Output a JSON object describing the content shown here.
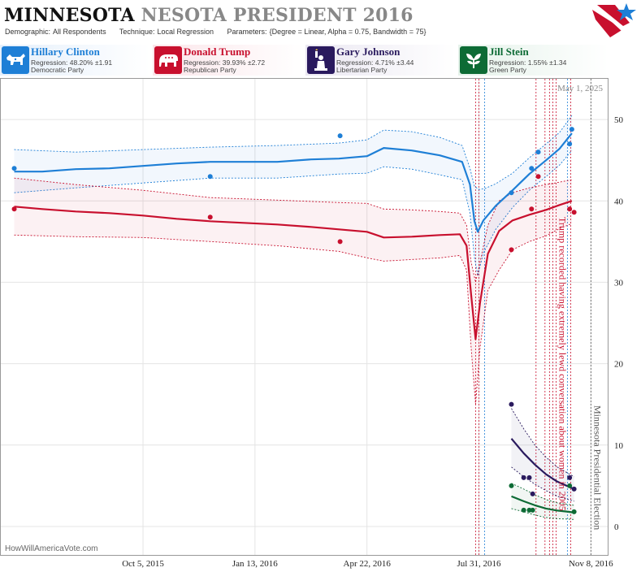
{
  "header": {
    "title_main": "MINNESOTA",
    "title_sub": "NESOTA PRESIDENT 2016",
    "demographic_key": "Demographic:",
    "demographic_val": "All Respondents",
    "technique_key": "Technique:",
    "technique_val": "Local Regression",
    "parameters_key": "Parameters:",
    "parameters_val": "{Degree = Linear, Alpha = 0.75, Bandwidth = 75}"
  },
  "candidates": [
    {
      "name": "Hillary Clinton",
      "regression": "Regression: 48.20% ±1.91",
      "party": "Democratic Party",
      "color": "#1e7fd6",
      "icon": "donkey-icon"
    },
    {
      "name": "Donald Trump",
      "regression": "Regression: 39.93% ±2.72",
      "party": "Republican Party",
      "color": "#c8102e",
      "icon": "elephant-icon"
    },
    {
      "name": "Gary Johnson",
      "regression": "Regression: 4.71% ±3.44",
      "party": "Libertarian Party",
      "color": "#2a1a5e",
      "icon": "statue-of-liberty-icon"
    },
    {
      "name": "Jill Stein",
      "regression": "Regression: 1.55% ±1.34",
      "party": "Green Party",
      "color": "#0d6b35",
      "icon": "leaf-icon"
    }
  ],
  "credit": "HowWillAmericaVote.com",
  "current_date": "May 1, 2025",
  "chart_data": {
    "type": "line",
    "x_ticks": [
      "Oct 5, 2015",
      "Jan 13, 2016",
      "Apr 22, 2016",
      "Jul 31, 2016",
      "Nov 8, 2016"
    ],
    "y_ticks": [
      0,
      10,
      20,
      30,
      40,
      50
    ],
    "ylim": [
      -3.5,
      55
    ],
    "xlim_days": [
      -127,
      415
    ],
    "annotations": [
      {
        "text": "Trump recorded having extremely lewd conversation about women in 2005",
        "day": 369,
        "color": "#c8102e"
      },
      {
        "text": "Minnesota Presidential Election",
        "day": 400,
        "color": "#555555"
      }
    ],
    "event_lines": [
      {
        "day": 297,
        "color": "#c8102e"
      },
      {
        "day": 300,
        "color": "#c8102e"
      },
      {
        "day": 305,
        "color": "#1e7fd6"
      },
      {
        "day": 351,
        "color": "#c8102e"
      },
      {
        "day": 359,
        "color": "#c8102e"
      },
      {
        "day": 363,
        "color": "#c8102e"
      },
      {
        "day": 366,
        "color": "#c8102e"
      },
      {
        "day": 369,
        "color": "#c8102e"
      },
      {
        "day": 379,
        "color": "#1e7fd6"
      },
      {
        "day": 382,
        "color": "#c8102e"
      },
      {
        "day": 400,
        "color": "#555555"
      }
    ],
    "series": [
      {
        "name": "Hillary Clinton",
        "color": "#1e7fd6",
        "points": [
          [
            -115,
            44
          ],
          [
            60,
            43
          ],
          [
            176,
            48
          ],
          [
            329,
            41
          ],
          [
            347,
            44
          ],
          [
            353,
            46
          ],
          [
            381,
            47
          ],
          [
            383,
            48.8
          ]
        ],
        "trend": [
          [
            -115,
            43.6
          ],
          [
            -90,
            43.6
          ],
          [
            -60,
            43.9
          ],
          [
            -30,
            44.0
          ],
          [
            0,
            44.3
          ],
          [
            30,
            44.6
          ],
          [
            60,
            44.8
          ],
          [
            90,
            44.8
          ],
          [
            120,
            44.8
          ],
          [
            150,
            45.1
          ],
          [
            175,
            45.2
          ],
          [
            200,
            45.5
          ],
          [
            215,
            46.5
          ],
          [
            240,
            46.2
          ],
          [
            265,
            45.6
          ],
          [
            285,
            44.8
          ],
          [
            292,
            42.0
          ],
          [
            296,
            37.5
          ],
          [
            299,
            36.2
          ],
          [
            304,
            37.6
          ],
          [
            315,
            39.4
          ],
          [
            330,
            41.3
          ],
          [
            345,
            43.3
          ],
          [
            360,
            45.0
          ],
          [
            372,
            46.4
          ],
          [
            383,
            48.3
          ]
        ],
        "upper": [
          [
            -115,
            46.3
          ],
          [
            -60,
            46.0
          ],
          [
            0,
            46.3
          ],
          [
            60,
            46.6
          ],
          [
            120,
            46.8
          ],
          [
            175,
            47.1
          ],
          [
            200,
            47.5
          ],
          [
            215,
            48.7
          ],
          [
            240,
            48.5
          ],
          [
            265,
            47.8
          ],
          [
            285,
            46.8
          ],
          [
            292,
            44.0
          ],
          [
            296,
            41.8
          ],
          [
            300,
            41.4
          ],
          [
            305,
            41.5
          ],
          [
            315,
            42.1
          ],
          [
            330,
            43.4
          ],
          [
            345,
            45.3
          ],
          [
            360,
            47.0
          ],
          [
            372,
            48.4
          ],
          [
            383,
            50.5
          ]
        ],
        "lower": [
          [
            -115,
            41.0
          ],
          [
            -60,
            41.6
          ],
          [
            0,
            42.2
          ],
          [
            60,
            42.8
          ],
          [
            120,
            42.8
          ],
          [
            175,
            43.3
          ],
          [
            200,
            43.4
          ],
          [
            215,
            44.2
          ],
          [
            240,
            43.9
          ],
          [
            265,
            43.2
          ],
          [
            285,
            42.6
          ],
          [
            292,
            38.5
          ],
          [
            296,
            33.0
          ],
          [
            299,
            30.8
          ],
          [
            304,
            33.6
          ],
          [
            315,
            36.5
          ],
          [
            330,
            39.2
          ],
          [
            345,
            41.3
          ],
          [
            360,
            43.0
          ],
          [
            372,
            44.4
          ],
          [
            383,
            46.2
          ]
        ]
      },
      {
        "name": "Donald Trump",
        "color": "#c8102e",
        "points": [
          [
            -115,
            39
          ],
          [
            60,
            38
          ],
          [
            176,
            35
          ],
          [
            329,
            34
          ],
          [
            347,
            39
          ],
          [
            353,
            43
          ],
          [
            381,
            39
          ],
          [
            385,
            38.6
          ]
        ],
        "trend": [
          [
            -115,
            39.3
          ],
          [
            -90,
            39.0
          ],
          [
            -60,
            38.7
          ],
          [
            -30,
            38.5
          ],
          [
            0,
            38.2
          ],
          [
            30,
            37.8
          ],
          [
            60,
            37.5
          ],
          [
            90,
            37.3
          ],
          [
            120,
            37.1
          ],
          [
            150,
            36.8
          ],
          [
            175,
            36.5
          ],
          [
            200,
            36.2
          ],
          [
            215,
            35.5
          ],
          [
            240,
            35.6
          ],
          [
            265,
            35.8
          ],
          [
            283,
            35.9
          ],
          [
            289,
            34.5
          ],
          [
            293,
            28.5
          ],
          [
            297,
            23.0
          ],
          [
            301,
            27.5
          ],
          [
            308,
            33.5
          ],
          [
            318,
            36.3
          ],
          [
            330,
            37.6
          ],
          [
            345,
            38.3
          ],
          [
            360,
            38.9
          ],
          [
            372,
            39.5
          ],
          [
            383,
            40.0
          ]
        ],
        "upper": [
          [
            -115,
            42.8
          ],
          [
            -60,
            42.0
          ],
          [
            0,
            41.3
          ],
          [
            60,
            40.4
          ],
          [
            120,
            40.1
          ],
          [
            175,
            39.8
          ],
          [
            200,
            39.7
          ],
          [
            215,
            39.0
          ],
          [
            240,
            38.9
          ],
          [
            265,
            38.7
          ],
          [
            283,
            38.5
          ],
          [
            289,
            37.0
          ],
          [
            293,
            32.5
          ],
          [
            297,
            30.0
          ],
          [
            301,
            32.5
          ],
          [
            308,
            37.0
          ],
          [
            318,
            40.0
          ],
          [
            330,
            41.0
          ],
          [
            345,
            41.6
          ],
          [
            360,
            42.0
          ],
          [
            372,
            42.3
          ],
          [
            383,
            42.6
          ]
        ],
        "lower": [
          [
            -115,
            35.8
          ],
          [
            -60,
            35.6
          ],
          [
            0,
            35.5
          ],
          [
            60,
            35.0
          ],
          [
            120,
            34.5
          ],
          [
            175,
            33.8
          ],
          [
            200,
            33.0
          ],
          [
            215,
            32.6
          ],
          [
            240,
            32.8
          ],
          [
            265,
            33.0
          ],
          [
            283,
            33.3
          ],
          [
            289,
            31.5
          ],
          [
            293,
            22.0
          ],
          [
            297,
            15.0
          ],
          [
            301,
            22.0
          ],
          [
            308,
            29.0
          ],
          [
            318,
            31.5
          ],
          [
            330,
            34.0
          ],
          [
            345,
            35.0
          ],
          [
            360,
            35.7
          ],
          [
            372,
            36.6
          ],
          [
            383,
            37.2
          ]
        ]
      },
      {
        "name": "Gary Johnson",
        "color": "#2a1a5e",
        "points": [
          [
            329,
            15
          ],
          [
            340,
            6
          ],
          [
            345,
            6
          ],
          [
            348,
            4
          ],
          [
            381,
            6
          ],
          [
            385,
            4.6
          ]
        ],
        "trend": [
          [
            329,
            10.8
          ],
          [
            340,
            9.0
          ],
          [
            350,
            7.6
          ],
          [
            360,
            6.4
          ],
          [
            370,
            5.5
          ],
          [
            380,
            4.9
          ],
          [
            385,
            4.6
          ]
        ],
        "upper": [
          [
            329,
            14.5
          ],
          [
            340,
            12.0
          ],
          [
            350,
            10.0
          ],
          [
            360,
            8.5
          ],
          [
            370,
            7.3
          ],
          [
            380,
            6.5
          ],
          [
            385,
            6.1
          ]
        ],
        "lower": [
          [
            329,
            7.3
          ],
          [
            340,
            6.1
          ],
          [
            350,
            5.2
          ],
          [
            360,
            4.4
          ],
          [
            370,
            3.7
          ],
          [
            380,
            3.3
          ],
          [
            385,
            3.1
          ]
        ]
      },
      {
        "name": "Jill Stein",
        "color": "#0d6b35",
        "points": [
          [
            329,
            5
          ],
          [
            340,
            2
          ],
          [
            345,
            2
          ],
          [
            348,
            2
          ],
          [
            381,
            5
          ],
          [
            385,
            1.8
          ]
        ],
        "trend": [
          [
            329,
            3.7
          ],
          [
            340,
            3.1
          ],
          [
            350,
            2.6
          ],
          [
            360,
            2.2
          ],
          [
            370,
            1.95
          ],
          [
            380,
            1.8
          ],
          [
            385,
            1.7
          ]
        ],
        "upper": [
          [
            329,
            5.3
          ],
          [
            340,
            4.6
          ],
          [
            350,
            3.9
          ],
          [
            360,
            3.3
          ],
          [
            370,
            2.9
          ],
          [
            380,
            2.7
          ],
          [
            385,
            2.6
          ]
        ],
        "lower": [
          [
            329,
            2.2
          ],
          [
            340,
            1.8
          ],
          [
            350,
            1.4
          ],
          [
            360,
            1.1
          ],
          [
            370,
            0.95
          ],
          [
            380,
            0.9
          ],
          [
            385,
            0.85
          ]
        ]
      }
    ]
  }
}
